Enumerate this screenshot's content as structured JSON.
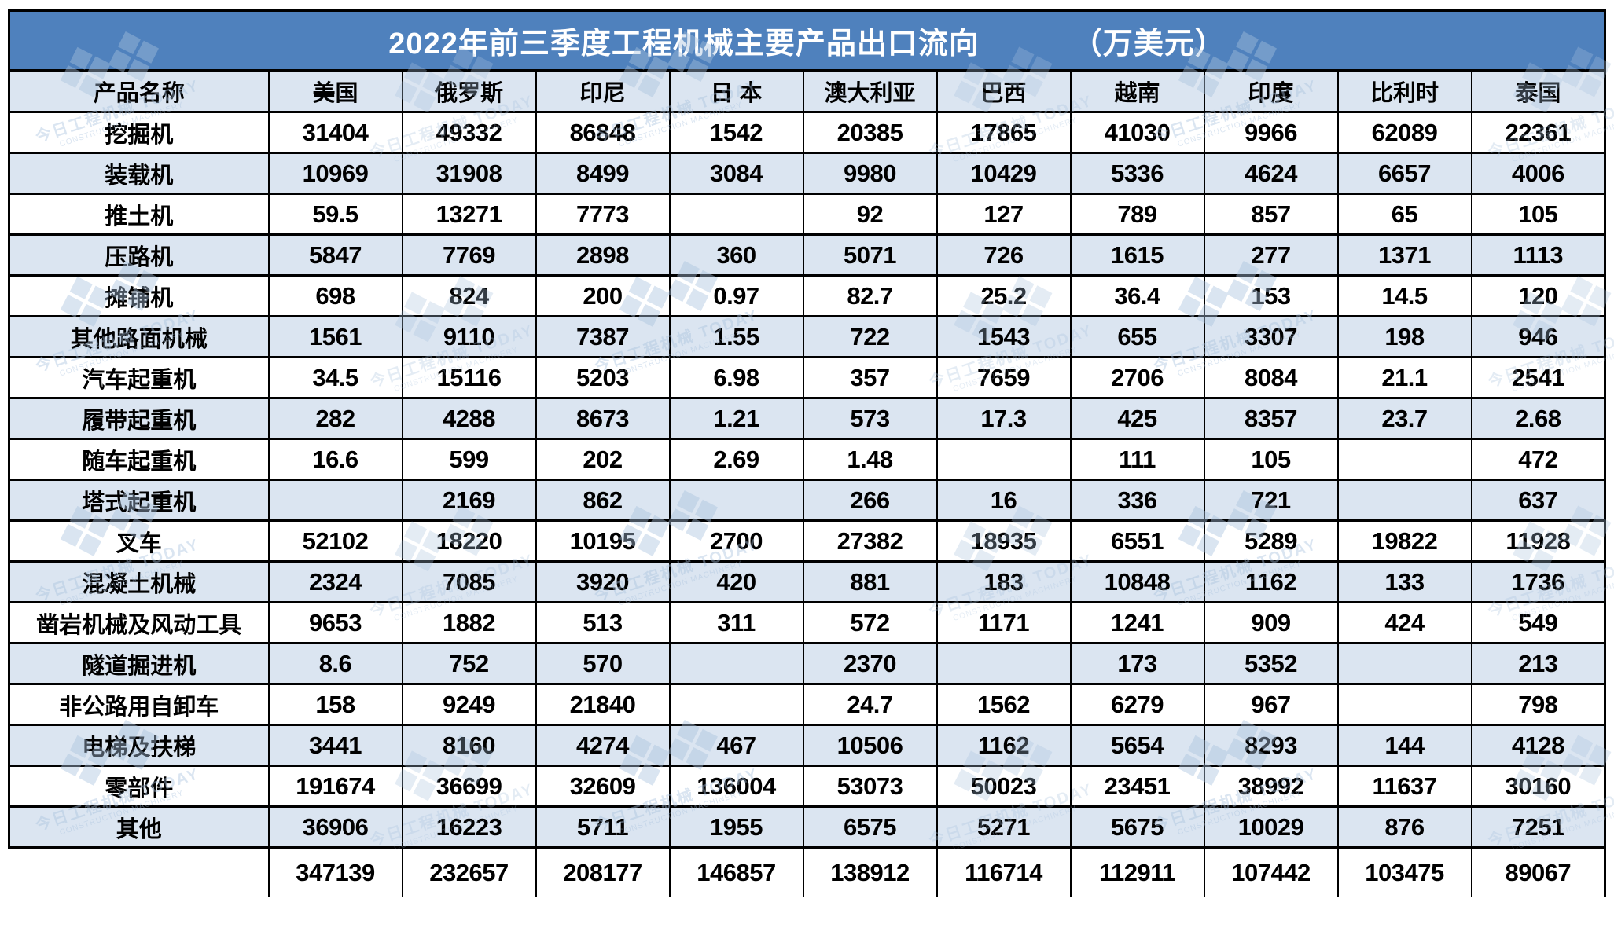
{
  "chart_data": {
    "type": "table",
    "title": "2022年前三季度工程机械主要产品出口流向",
    "unit": "（万美元）",
    "columns": [
      "产品名称",
      "美国",
      "俄罗斯",
      "印尼",
      "日 本",
      "澳大利亚",
      "巴西",
      "越南",
      "印度",
      "比利时",
      "泰国"
    ],
    "rows": [
      {
        "label": "挖掘机",
        "values": [
          "31404",
          "49332",
          "86848",
          "1542",
          "20385",
          "17865",
          "41030",
          "9966",
          "62089",
          "22361"
        ]
      },
      {
        "label": "装载机",
        "values": [
          "10969",
          "31908",
          "8499",
          "3084",
          "9980",
          "10429",
          "5336",
          "4624",
          "6657",
          "4006"
        ]
      },
      {
        "label": "推土机",
        "values": [
          "59.5",
          "13271",
          "7773",
          "",
          "92",
          "127",
          "789",
          "857",
          "65",
          "105"
        ]
      },
      {
        "label": "压路机",
        "values": [
          "5847",
          "7769",
          "2898",
          "360",
          "5071",
          "726",
          "1615",
          "277",
          "1371",
          "1113"
        ]
      },
      {
        "label": "摊铺机",
        "values": [
          "698",
          "824",
          "200",
          "0.97",
          "82.7",
          "25.2",
          "36.4",
          "153",
          "14.5",
          "120"
        ]
      },
      {
        "label": "其他路面机械",
        "values": [
          "1561",
          "9110",
          "7387",
          "1.55",
          "722",
          "1543",
          "655",
          "3307",
          "198",
          "946"
        ]
      },
      {
        "label": "汽车起重机",
        "values": [
          "34.5",
          "15116",
          "5203",
          "6.98",
          "357",
          "7659",
          "2706",
          "8084",
          "21.1",
          "2541"
        ]
      },
      {
        "label": "履带起重机",
        "values": [
          "282",
          "4288",
          "8673",
          "1.21",
          "573",
          "17.3",
          "425",
          "8357",
          "23.7",
          "2.68"
        ]
      },
      {
        "label": "随车起重机",
        "values": [
          "16.6",
          "599",
          "202",
          "2.69",
          "1.48",
          "",
          "111",
          "105",
          "",
          "472"
        ]
      },
      {
        "label": "塔式起重机",
        "values": [
          "",
          "2169",
          "862",
          "",
          "266",
          "16",
          "336",
          "721",
          "",
          "637"
        ]
      },
      {
        "label": "叉车",
        "values": [
          "52102",
          "18220",
          "10195",
          "2700",
          "27382",
          "18935",
          "6551",
          "5289",
          "19822",
          "11928"
        ]
      },
      {
        "label": "混凝土机械",
        "values": [
          "2324",
          "7085",
          "3920",
          "420",
          "881",
          "183",
          "10848",
          "1162",
          "133",
          "1736"
        ]
      },
      {
        "label": "凿岩机械及风动工具",
        "values": [
          "9653",
          "1882",
          "513",
          "311",
          "572",
          "1171",
          "1241",
          "909",
          "424",
          "549"
        ]
      },
      {
        "label": "隧道掘进机",
        "values": [
          "8.6",
          "752",
          "570",
          "",
          "2370",
          "",
          "173",
          "5352",
          "",
          "213"
        ]
      },
      {
        "label": "非公路用自卸车",
        "values": [
          "158",
          "9249",
          "21840",
          "",
          "24.7",
          "1562",
          "6279",
          "967",
          "",
          "798"
        ]
      },
      {
        "label": "电梯及扶梯",
        "values": [
          "3441",
          "8160",
          "4274",
          "467",
          "10506",
          "1162",
          "5654",
          "8293",
          "144",
          "4128"
        ]
      },
      {
        "label": "零部件",
        "values": [
          "191674",
          "36699",
          "32609",
          "136004",
          "53073",
          "50023",
          "23451",
          "38992",
          "11637",
          "30160"
        ]
      },
      {
        "label": "其他",
        "values": [
          "36906",
          "16223",
          "5711",
          "1955",
          "6575",
          "5271",
          "5675",
          "10029",
          "876",
          "7251"
        ]
      },
      {
        "label": "",
        "values": [
          "347139",
          "232657",
          "208177",
          "146857",
          "138912",
          "116714",
          "112911",
          "107442",
          "103475",
          "89067"
        ]
      }
    ],
    "layout": {
      "title_bg": "#4f81bd",
      "title_color": "#ffffff",
      "stripe_color": "#dbe5f1",
      "border_color": "#000000"
    }
  },
  "watermark": {
    "glyph": "❖❖",
    "text": "今日工程机械 TODAY",
    "subtext": "CONSTRUCTION MACHINERY"
  }
}
